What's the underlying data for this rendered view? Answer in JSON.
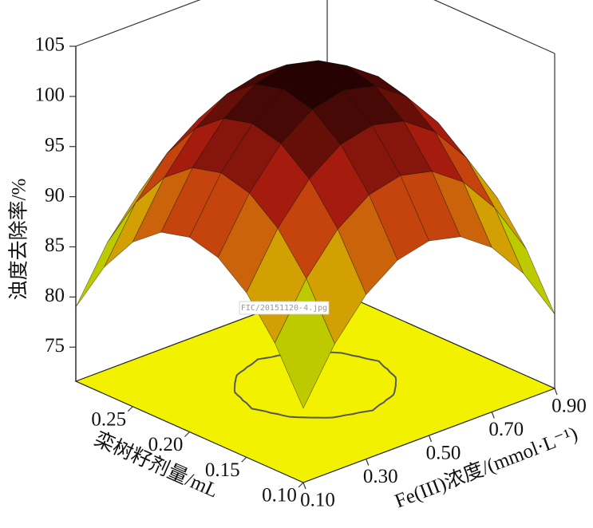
{
  "chart_data": {
    "type": "surface3d",
    "zlabel": "浊度去除率/%",
    "xlabel": "Fe(III)浓度/(mmol·L⁻¹)",
    "ylabel": "栾树籽剂量/mL",
    "annotation": "FIC/20151120-4.jpg",
    "x": [
      0.1,
      0.2,
      0.3,
      0.4,
      0.5,
      0.6,
      0.7,
      0.8,
      0.9
    ],
    "y": [
      0.1,
      0.125,
      0.15,
      0.175,
      0.2,
      0.225,
      0.25,
      0.275,
      0.3
    ],
    "z": [
      [
        79,
        84.25,
        88,
        90.25,
        91,
        90.25,
        88,
        84.25,
        79
      ],
      [
        84.25,
        89.5,
        93.25,
        95.5,
        96.25,
        95.5,
        93.25,
        89.5,
        84.25
      ],
      [
        88,
        93.25,
        97,
        99.25,
        100,
        99.25,
        97,
        93.25,
        88
      ],
      [
        90.25,
        95.5,
        99.25,
        101.5,
        102.25,
        101.5,
        99.25,
        95.5,
        90.25
      ],
      [
        91,
        96.25,
        100,
        102.25,
        103,
        102.25,
        100,
        96.25,
        91
      ],
      [
        90.25,
        95.5,
        99.25,
        101.5,
        102.25,
        101.5,
        99.25,
        95.5,
        90.25
      ],
      [
        88,
        93.25,
        97,
        99.25,
        100,
        99.25,
        97,
        93.25,
        88
      ],
      [
        84.25,
        89.5,
        93.25,
        95.5,
        96.25,
        95.5,
        93.25,
        89.5,
        84.25
      ],
      [
        79,
        84.25,
        88,
        90.25,
        91,
        90.25,
        88,
        84.25,
        79
      ]
    ],
    "xlim": [
      0.1,
      0.9
    ],
    "ylim": [
      0.1,
      0.3
    ],
    "zlim": [
      71.6,
      105
    ],
    "xticks": [
      {
        "value": 0.1,
        "label": "0.10"
      },
      {
        "value": 0.3,
        "label": "0.30"
      },
      {
        "value": 0.5,
        "label": "0.50"
      },
      {
        "value": 0.7,
        "label": "0.70"
      },
      {
        "value": 0.9,
        "label": "0.90"
      }
    ],
    "yticks": [
      {
        "value": 0.1,
        "label": "0.10"
      },
      {
        "value": 0.15,
        "label": "0.15"
      },
      {
        "value": 0.2,
        "label": "0.20"
      },
      {
        "value": 0.25,
        "label": "0.25"
      }
    ],
    "zticks": [
      75,
      80,
      85,
      90,
      95,
      100,
      105
    ],
    "colormap": [
      "#8ad400",
      "#d8c400",
      "#c02010",
      "#160000"
    ],
    "floor_color": "#f2f200",
    "contour_levels": [
      100
    ]
  }
}
